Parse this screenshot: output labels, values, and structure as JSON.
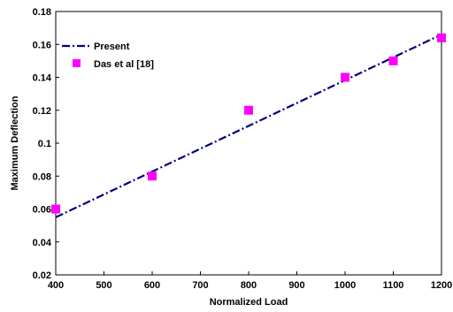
{
  "chart_data": {
    "type": "line",
    "title": "",
    "xlabel": "Normalized Load",
    "ylabel": "Maximum Deflection",
    "xlim": [
      400,
      1200
    ],
    "ylim": [
      0.02,
      0.18
    ],
    "x_ticks": [
      "400",
      "500",
      "600",
      "700",
      "800",
      "900",
      "1000",
      "1100",
      "1200"
    ],
    "y_ticks": [
      "0.02",
      "0.04",
      "0.06",
      "0.08",
      "0.1",
      "0.12",
      "0.14",
      "0.16",
      "0.18"
    ],
    "grid": false,
    "legend_position": "top-left",
    "series": [
      {
        "name": "Present",
        "style": "dash-dot line",
        "color": "#000080",
        "x": [
          400,
          1200
        ],
        "y": [
          0.055,
          0.166
        ]
      },
      {
        "name": "Das et al [18]",
        "style": "square markers",
        "color": "#FF00FF",
        "x": [
          400,
          600,
          800,
          1000,
          1100,
          1200
        ],
        "y": [
          0.06,
          0.08,
          0.12,
          0.14,
          0.15,
          0.164
        ]
      }
    ]
  }
}
